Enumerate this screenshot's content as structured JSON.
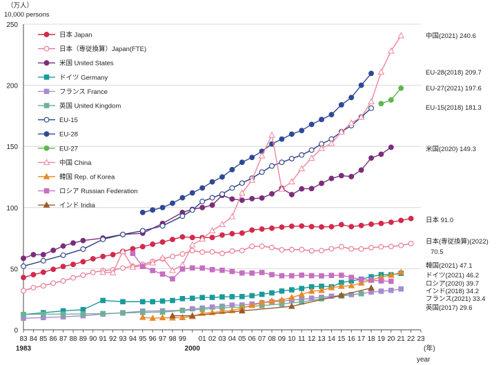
{
  "chart_data": {
    "type": "line",
    "title": "",
    "ylabel_unit_ja": "（万人）",
    "ylabel_unit_en": "10,000 persons",
    "x_unit_ja": "(年)",
    "x_unit_en": "year",
    "ylim": [
      0,
      250
    ],
    "yticks": [
      0,
      50,
      100,
      150,
      200,
      250
    ],
    "xlim": [
      1983,
      2023
    ],
    "xtick_labels": [
      {
        "year": 1983,
        "label": "83",
        "sub": "1983"
      },
      {
        "year": 1984,
        "label": "84"
      },
      {
        "year": 1985,
        "label": "85"
      },
      {
        "year": 1986,
        "label": "86"
      },
      {
        "year": 1987,
        "label": "87"
      },
      {
        "year": 1988,
        "label": "88"
      },
      {
        "year": 1989,
        "label": "89"
      },
      {
        "year": 1990,
        "label": "90"
      },
      {
        "year": 1991,
        "label": "91"
      },
      {
        "year": 1992,
        "label": "92"
      },
      {
        "year": 1993,
        "label": "93"
      },
      {
        "year": 1994,
        "label": "94"
      },
      {
        "year": 1995,
        "label": "95"
      },
      {
        "year": 1996,
        "label": "96"
      },
      {
        "year": 1997,
        "label": "97"
      },
      {
        "year": 1998,
        "label": "98"
      },
      {
        "year": 1999,
        "label": "99"
      },
      {
        "year": 2000,
        "label": "",
        "sub": "2000"
      },
      {
        "year": 2001,
        "label": "01"
      },
      {
        "year": 2002,
        "label": "02"
      },
      {
        "year": 2003,
        "label": "03"
      },
      {
        "year": 2004,
        "label": "04"
      },
      {
        "year": 2005,
        "label": "05"
      },
      {
        "year": 2006,
        "label": "06"
      },
      {
        "year": 2007,
        "label": "07"
      },
      {
        "year": 2008,
        "label": "08"
      },
      {
        "year": 2009,
        "label": "09"
      },
      {
        "year": 2010,
        "label": "10"
      },
      {
        "year": 2011,
        "label": "11"
      },
      {
        "year": 2012,
        "label": "12"
      },
      {
        "year": 2013,
        "label": "13"
      },
      {
        "year": 2014,
        "label": "14"
      },
      {
        "year": 2015,
        "label": "15"
      },
      {
        "year": 2016,
        "label": "16"
      },
      {
        "year": 2017,
        "label": "17"
      },
      {
        "year": 2018,
        "label": "18"
      },
      {
        "year": 2019,
        "label": "19"
      },
      {
        "year": 2020,
        "label": "20"
      },
      {
        "year": 2021,
        "label": "21"
      },
      {
        "year": 2022,
        "label": "22"
      },
      {
        "year": 2023,
        "label": "23"
      }
    ],
    "series": [
      {
        "key": "japan",
        "name": "日本 Japan",
        "color": "#d22b4b",
        "marker": "circle",
        "fill": true,
        "x": [
          1983,
          1984,
          1985,
          1986,
          1987,
          1988,
          1989,
          1990,
          1991,
          1992,
          1993,
          1994,
          1995,
          1996,
          1997,
          1998,
          1999,
          2000,
          2001,
          2002,
          2003,
          2004,
          2005,
          2006,
          2007,
          2008,
          2009,
          2010,
          2011,
          2012,
          2013,
          2014,
          2015,
          2016,
          2017,
          2018,
          2019,
          2020,
          2021,
          2022
        ],
        "y": [
          42.8,
          45.1,
          47.1,
          49.5,
          51.8,
          53.5,
          55.7,
          58.1,
          60.0,
          61.5,
          64.1,
          66.3,
          68.0,
          70.0,
          71.8,
          73.9,
          76.0,
          75.5,
          75.4,
          75.5,
          77.5,
          78.6,
          79.1,
          81.6,
          82.4,
          83.1,
          84.0,
          84.7,
          84.9,
          84.4,
          84.1,
          84.3,
          86.0,
          84.4,
          85.3,
          86.4,
          87.0,
          88.0,
          89.5,
          91.0
        ]
      },
      {
        "key": "japan_fte",
        "name": "日本（専従換算）Japan(FTE)",
        "color": "#e8768e",
        "marker": "circle",
        "fill": false,
        "x": [
          1983,
          1984,
          1985,
          1986,
          1987,
          1988,
          1989,
          1990,
          1991,
          1992,
          1993,
          1994,
          1995,
          1996,
          1997,
          1998,
          1999,
          2000,
          2001,
          2002,
          2003,
          2004,
          2005,
          2006,
          2007,
          2008,
          2009,
          2010,
          2011,
          2012,
          2013,
          2014,
          2015,
          2016,
          2017,
          2018,
          2019,
          2020,
          2021,
          2022
        ],
        "y": [
          32,
          34.5,
          36,
          38.2,
          40,
          42.5,
          44.7,
          47,
          48.5,
          49,
          50.5,
          52,
          53.5,
          56,
          58,
          60,
          62,
          64.8,
          63.5,
          63.8,
          62.5,
          64.4,
          64.8,
          68.2,
          68.4,
          67.3,
          65.4,
          65.6,
          65.6,
          64.6,
          64.8,
          66.3,
          67.9,
          66.2,
          66.1,
          67.2,
          67.9,
          68.1,
          69.0,
          70.5
        ]
      },
      {
        "key": "us",
        "name": "米国 United States",
        "color": "#7a2e7a",
        "marker": "circle",
        "fill": true,
        "x": [
          1983,
          1984,
          1985,
          1986,
          1987,
          1988,
          1989,
          1991,
          1993,
          1995,
          1997,
          1999,
          2000,
          2001,
          2002,
          2003,
          2004,
          2005,
          2006,
          2007,
          2008,
          2009,
          2010,
          2011,
          2012,
          2013,
          2014,
          2015,
          2016,
          2017,
          2018,
          2019,
          2020
        ],
        "y": [
          58.5,
          61.5,
          61.5,
          65,
          68.5,
          71,
          73,
          75,
          78,
          79,
          87,
          96,
          98.5,
          100,
          102,
          110,
          107,
          106,
          107.3,
          107.8,
          111.2,
          115.8,
          110.6,
          115.3,
          115.5,
          119.8,
          123.8,
          126.1,
          125.3,
          130.7,
          140.5,
          143.6,
          149.3
        ]
      },
      {
        "key": "germany",
        "name": "ドイツ Germany",
        "color": "#1a9a9a",
        "marker": "square",
        "fill": true,
        "x": [
          1983,
          1985,
          1987,
          1989,
          1991,
          1993,
          1995,
          1996,
          1997,
          1998,
          1999,
          2000,
          2001,
          2002,
          2003,
          2004,
          2005,
          2006,
          2007,
          2008,
          2009,
          2010,
          2011,
          2012,
          2013,
          2014,
          2015,
          2016,
          2017,
          2018,
          2019,
          2020,
          2021
        ],
        "y": [
          12.5,
          14,
          15.5,
          16.5,
          24,
          23,
          23,
          23,
          23.5,
          24,
          25.5,
          25.8,
          26.4,
          26.5,
          26.9,
          27.1,
          27.2,
          27.9,
          29.0,
          30.2,
          31.7,
          32.7,
          33.8,
          35.2,
          35.6,
          35.2,
          38.7,
          40.0,
          41.4,
          43.4,
          45.1,
          45.0,
          46.2
        ]
      },
      {
        "key": "france",
        "name": "フランス France",
        "color": "#a78bd0",
        "marker": "square",
        "fill": true,
        "x": [
          1983,
          1985,
          1987,
          1989,
          1991,
          1993,
          1995,
          1997,
          1999,
          2000,
          2001,
          2002,
          2003,
          2004,
          2005,
          2006,
          2007,
          2008,
          2009,
          2010,
          2011,
          2012,
          2013,
          2014,
          2015,
          2016,
          2017,
          2018,
          2019,
          2020,
          2021
        ],
        "y": [
          9.5,
          10,
          10.6,
          11.5,
          12.8,
          14,
          15.3,
          15.5,
          16.0,
          17.2,
          17.8,
          18.6,
          19.3,
          20.2,
          20.3,
          21.1,
          22.1,
          22.9,
          23.4,
          24.4,
          24.9,
          25.9,
          26.6,
          27.5,
          27.8,
          28.8,
          29.5,
          30.9,
          31.6,
          32.3,
          33.4
        ]
      },
      {
        "key": "uk",
        "name": "英国 United Kingdom",
        "color": "#6fb09a",
        "marker": "square",
        "fill": true,
        "x": [
          1983,
          1985,
          1987,
          1989,
          1991,
          1993,
          1995,
          1997,
          1999,
          2001,
          2003,
          2005,
          2007,
          2009,
          2011,
          2013,
          2015,
          2017
        ],
        "y": [
          12.5,
          12.8,
          12.8,
          13,
          13.3,
          13.7,
          14.2,
          14.5,
          15.8,
          16.8,
          18.1,
          18.6,
          19.8,
          21.1,
          22.8,
          25.4,
          27.6,
          29.6
        ]
      },
      {
        "key": "eu15",
        "name": "EU-15",
        "color": "#273d82",
        "marker": "circle",
        "fill": false,
        "x": [
          1983,
          1985,
          1987,
          1989,
          1991,
          1993,
          1995,
          1997,
          1999,
          2000,
          2001,
          2002,
          2003,
          2004,
          2005,
          2006,
          2007,
          2008,
          2009,
          2010,
          2011,
          2012,
          2013,
          2014,
          2015,
          2016,
          2017,
          2018
        ],
        "y": [
          52,
          56.5,
          61,
          66,
          74,
          78,
          81,
          85,
          93,
          98,
          105,
          108,
          111,
          116,
          120,
          124,
          129,
          134,
          137,
          140,
          143,
          147,
          152,
          156,
          162,
          167,
          174,
          181.3
        ]
      },
      {
        "key": "eu28",
        "name": "EU-28",
        "color": "#2e4a96",
        "marker": "circle",
        "fill": true,
        "x": [
          1995,
          1996,
          1997,
          1998,
          1999,
          2000,
          2001,
          2002,
          2003,
          2004,
          2005,
          2006,
          2007,
          2008,
          2009,
          2010,
          2011,
          2012,
          2013,
          2014,
          2015,
          2016,
          2017,
          2018
        ],
        "y": [
          96,
          98,
          100,
          103.5,
          108,
          112,
          116,
          121,
          125,
          131,
          137,
          141,
          146,
          152,
          156,
          160,
          163,
          168,
          172,
          176,
          184,
          190,
          200,
          209.7
        ]
      },
      {
        "key": "eu27",
        "name": "EU-27",
        "color": "#5cb84a",
        "marker": "circle",
        "fill": true,
        "x": [
          2019,
          2020,
          2021
        ],
        "y": [
          185,
          188,
          197.6
        ]
      },
      {
        "key": "china",
        "name": "中国 China",
        "color": "#f2849b",
        "marker": "triangle",
        "fill": false,
        "x": [
          1991,
          1992,
          1993,
          1994,
          1995,
          1996,
          1997,
          1998,
          1999,
          2000,
          2001,
          2002,
          2003,
          2004,
          2005,
          2006,
          2007,
          2008,
          2009,
          2010,
          2011,
          2012,
          2013,
          2014,
          2015,
          2016,
          2017,
          2018,
          2019,
          2020,
          2021
        ],
        "y": [
          47.1,
          46.7,
          64.2,
          51.3,
          52.2,
          54.8,
          58.8,
          48.6,
          53.1,
          69.5,
          74.3,
          81.1,
          86.2,
          92.6,
          111.9,
          122.4,
          142.3,
          159.2,
          115.2,
          121.1,
          131.8,
          140.4,
          148.4,
          152.4,
          161.9,
          169.2,
          174.0,
          186.6,
          210.9,
          228.1,
          240.6
        ]
      },
      {
        "key": "korea",
        "name": "韓国 Rep. of Korea",
        "color": "#e88a2a",
        "marker": "triangle",
        "fill": true,
        "x": [
          1995,
          1996,
          1997,
          1998,
          1999,
          2000,
          2001,
          2002,
          2003,
          2004,
          2005,
          2006,
          2007,
          2008,
          2009,
          2010,
          2011,
          2012,
          2013,
          2014,
          2015,
          2016,
          2017,
          2018,
          2019,
          2020,
          2021
        ],
        "y": [
          10.2,
          9.5,
          9.9,
          9.7,
          10.0,
          10.8,
          13.6,
          14.1,
          15.1,
          15.7,
          17.9,
          20.0,
          22.2,
          23.6,
          24.4,
          26.4,
          28.9,
          31.6,
          32.2,
          34.5,
          35.6,
          36.1,
          38.3,
          40.8,
          43.1,
          44.6,
          47.1
        ]
      },
      {
        "key": "russia",
        "name": "ロシア Russian Federation",
        "color": "#c76fc1",
        "marker": "square",
        "fill": true,
        "x": [
          1994,
          1995,
          1996,
          1997,
          1998,
          1999,
          2000,
          2001,
          2002,
          2003,
          2004,
          2005,
          2006,
          2007,
          2008,
          2009,
          2010,
          2011,
          2012,
          2013,
          2014,
          2015,
          2016,
          2017,
          2018,
          2019,
          2020
        ],
        "y": [
          62.5,
          51.8,
          48.5,
          45.6,
          41.7,
          49.7,
          50.6,
          50.5,
          49.2,
          48.7,
          47.7,
          46.5,
          46.4,
          46.9,
          45.1,
          44.2,
          44.2,
          44.7,
          44.3,
          44.1,
          44.5,
          44.6,
          42.9,
          41.0,
          40.6,
          40.0,
          39.7
        ]
      },
      {
        "key": "india",
        "name": "インド India",
        "color": "#9a5a2a",
        "marker": "triangle",
        "fill": true,
        "x": [
          1998,
          2000,
          2005,
          2010,
          2015,
          2018
        ],
        "y": [
          11.5,
          11.5,
          15.5,
          19.2,
          28.3,
          34.2
        ]
      }
    ],
    "annotations": [
      {
        "text": "中国(2021) 240.6",
        "at": 240.6
      },
      {
        "text": "EU-28(2018) 209.7",
        "at": 209.7
      },
      {
        "text": "EU-27(2021) 197.6",
        "at": 197.6
      },
      {
        "text": "EU-15(2018) 181.3",
        "at": 181.3
      },
      {
        "text": "米国(2020) 149.3",
        "at": 149.3
      },
      {
        "text": "日本 91.0",
        "at": 91.0
      },
      {
        "text": "日本(専従換算)(2022)",
        "at": 70.5,
        "line": "a"
      },
      {
        "text": "70.5",
        "at": 70.5,
        "line": "b"
      },
      {
        "text": "韓国(2021) 47.1",
        "at": 47.1
      },
      {
        "text": "ドイツ(2021) 46.2",
        "at": 46.2
      },
      {
        "text": "ロシア(2020) 39.7",
        "at": 39.7
      },
      {
        "text": "インド(2018) 34.2",
        "at": 34.2
      },
      {
        "text": "フランス(2021) 33.4",
        "at": 33.4
      },
      {
        "text": "英国(2017) 29.6",
        "at": 29.6
      }
    ]
  }
}
